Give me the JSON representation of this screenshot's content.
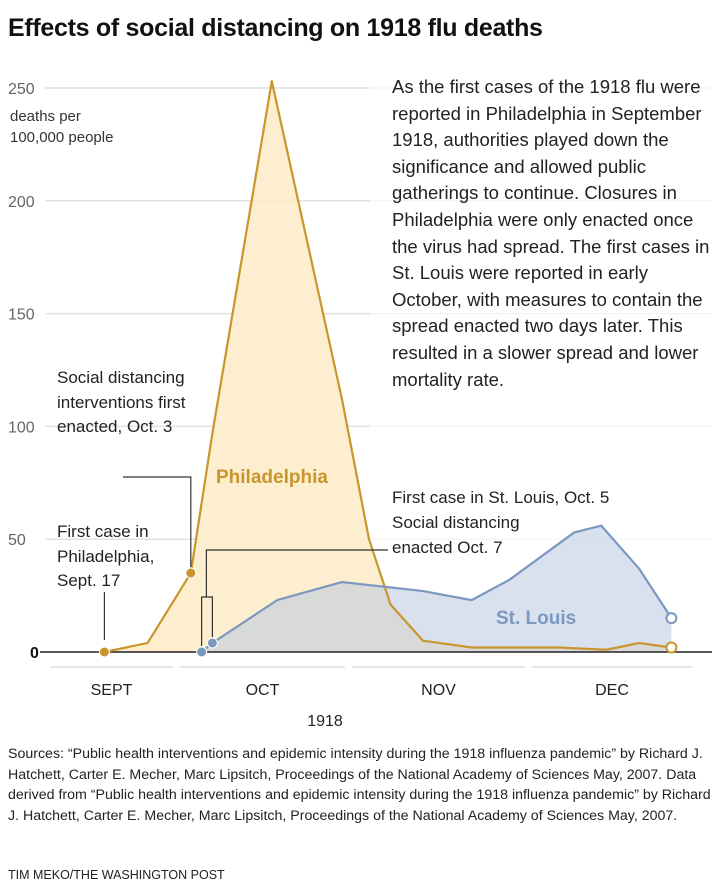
{
  "title": "Effects of social distancing on 1918 flu deaths",
  "body_text": "As the first cases of the 1918 flu were reported in Philadelphia in September 1918, authorities played down the significance and allowed public gatherings to continue. Closures in Philadelphia were only enacted once the virus had spread. The first cases in St. Louis were reported in early October, with measures to contain the spread enacted two days later. This resulted in a slower spread and lower mortality rate.",
  "annotations": {
    "philly_first_case": "First case in Philadelphia, Sept. 17",
    "philly_distancing": "Social distancing interventions first enacted, Oct. 3",
    "stl_first_case": "First case in St. Louis, Oct. 5",
    "stl_distancing": "Social distancing enacted Oct. 7"
  },
  "chart_data": {
    "type": "area",
    "ylabel": "deaths per 100,000 people",
    "xlabel": "1918",
    "ylim": [
      0,
      250
    ],
    "yticks": [
      0,
      50,
      100,
      150,
      200,
      250
    ],
    "xlim": [
      "1918-09-01",
      "1918-12-31"
    ],
    "xtick_labels": [
      "SEPT",
      "OCT",
      "NOV",
      "DEC"
    ],
    "grid": true,
    "series": [
      {
        "name": "Philadelphia",
        "color": "#c9962e",
        "fill": "#fcebc6",
        "x": [
          "1918-09-17",
          "1918-09-25",
          "1918-10-03",
          "1918-10-07",
          "1918-10-18",
          "1918-10-31",
          "1918-11-05",
          "1918-11-09",
          "1918-11-15",
          "1918-11-24",
          "1918-12-10",
          "1918-12-19",
          "1918-12-25",
          "1918-12-31"
        ],
        "y": [
          0,
          4,
          35,
          97,
          253,
          112,
          50,
          21,
          5,
          2,
          2,
          1,
          4,
          2
        ]
      },
      {
        "name": "St. Louis",
        "color": "#7b98bf",
        "fill": "#b9c9e2",
        "x": [
          "1918-10-05",
          "1918-10-07",
          "1918-10-19",
          "1918-10-31",
          "1918-11-15",
          "1918-11-24",
          "1918-12-01",
          "1918-12-13",
          "1918-12-18",
          "1918-12-25",
          "1918-12-31"
        ],
        "y": [
          0,
          4,
          23,
          31,
          27,
          23,
          32,
          53,
          56,
          37,
          15
        ]
      }
    ]
  },
  "sources": "Sources: “Public health interventions and epidemic intensity during the 1918 influenza pandemic” by Richard J. Hatchett, Carter E. Mecher, Marc Lipsitch, Proceedings of the National Academy of Sciences May, 2007. Data derived from “Public health interventions and epidemic intensity during the 1918 influenza pandemic” by Richard J. Hatchett, Carter E. Mecher, Marc Lipsitch, Proceedings of the National Academy of Sciences May, 2007.",
  "credit": "TIM MEKO/THE WASHINGTON POST"
}
